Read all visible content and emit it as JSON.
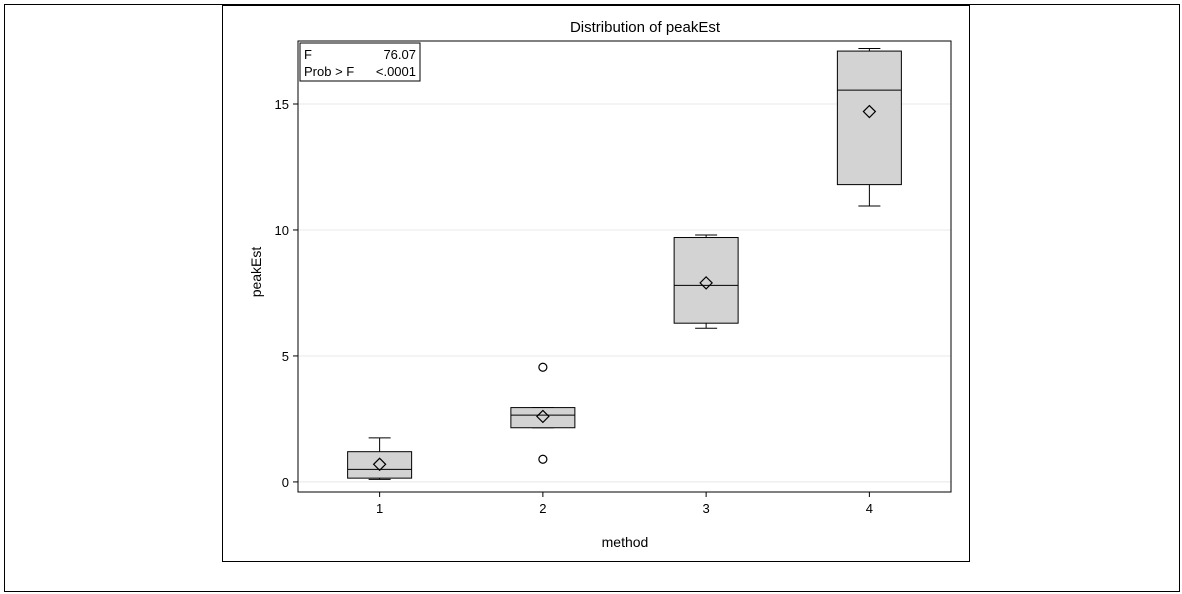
{
  "chart_data": {
    "type": "box",
    "title": "Distribution of peakEst",
    "xlabel": "method",
    "ylabel": "peakEst",
    "categories": [
      "1",
      "2",
      "3",
      "4"
    ],
    "ylim": [
      -0.4,
      17.5
    ],
    "yticks": [
      "0",
      "5",
      "10",
      "15"
    ],
    "ytick_values": [
      0,
      5,
      10,
      15
    ],
    "grid": "horizontal",
    "boxes": [
      {
        "category": "1",
        "whisker_low": 0.1,
        "q1": 0.15,
        "median": 0.5,
        "q3": 1.2,
        "whisker_high": 1.75,
        "mean": 0.7,
        "outliers": []
      },
      {
        "category": "2",
        "whisker_low": 2.15,
        "q1": 2.15,
        "median": 2.65,
        "q3": 2.95,
        "whisker_high": 2.95,
        "mean": 2.6,
        "outliers": [
          0.9,
          4.55
        ]
      },
      {
        "category": "3",
        "whisker_low": 6.1,
        "q1": 6.3,
        "median": 7.8,
        "q3": 9.7,
        "whisker_high": 9.8,
        "mean": 7.9,
        "outliers": []
      },
      {
        "category": "4",
        "whisker_low": 10.95,
        "q1": 11.8,
        "median": 15.55,
        "q3": 17.1,
        "whisker_high": 17.2,
        "mean": 14.7,
        "outliers": []
      }
    ],
    "stats_box": {
      "row1_label": "F",
      "row1_value": "76.07",
      "row2_label": "Prob > F",
      "row2_value": "<.0001"
    },
    "colors": {
      "box_fill": "#d3d3d3",
      "stroke": "#000000",
      "grid": "#e8e8e8"
    }
  }
}
